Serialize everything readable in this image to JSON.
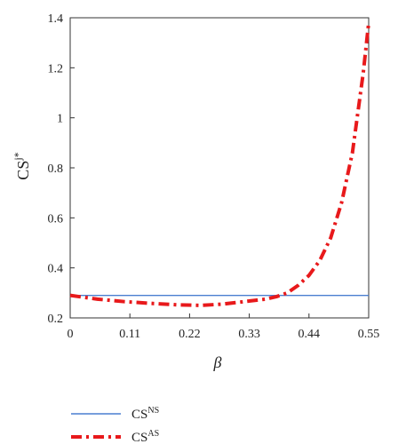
{
  "chart_data": {
    "type": "line",
    "xlabel": "β",
    "ylabel": {
      "base": "CS",
      "sup": "j*"
    },
    "xlim": [
      0,
      0.55
    ],
    "ylim": [
      0.2,
      1.4
    ],
    "x_ticks": [
      "0",
      "0.11",
      "0.22",
      "0.33",
      "0.44",
      "0.55"
    ],
    "y_ticks": [
      "0.2",
      "0.4",
      "0.6",
      "0.8",
      "1",
      "1.2",
      "1.4"
    ],
    "x_tick_values": [
      0,
      0.11,
      0.22,
      0.33,
      0.44,
      0.55
    ],
    "y_tick_values": [
      0.2,
      0.4,
      0.6,
      0.8,
      1.0,
      1.2,
      1.4
    ],
    "grid": false,
    "legend_position": "bottom",
    "series": [
      {
        "name": {
          "base": "CS",
          "sup": "NS"
        },
        "style": "solid",
        "color": "#4a7fd0",
        "x": [
          0,
          0.55
        ],
        "y": [
          0.29,
          0.29
        ]
      },
      {
        "name": {
          "base": "CS",
          "sup": "AS"
        },
        "style": "dashdot",
        "color": "#e8191b",
        "x": [
          0,
          0.05,
          0.1,
          0.15,
          0.2,
          0.24,
          0.28,
          0.32,
          0.36,
          0.38,
          0.4,
          0.42,
          0.44,
          0.46,
          0.48,
          0.5,
          0.52,
          0.54,
          0.55
        ],
        "y": [
          0.29,
          0.275,
          0.265,
          0.258,
          0.252,
          0.25,
          0.255,
          0.265,
          0.275,
          0.285,
          0.3,
          0.33,
          0.37,
          0.43,
          0.52,
          0.66,
          0.86,
          1.18,
          1.38
        ]
      }
    ]
  }
}
